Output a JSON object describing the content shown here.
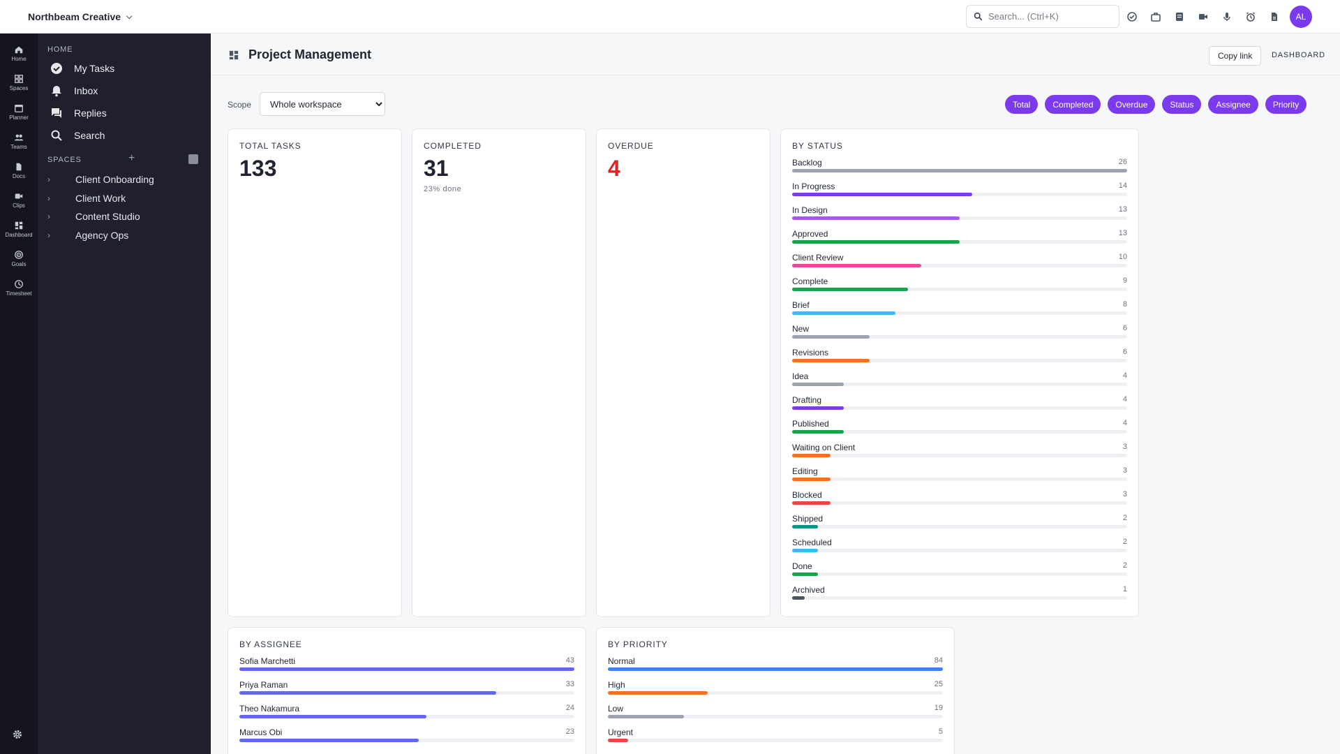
{
  "topbar": {
    "workspace": "Northbeam Creative",
    "search_placeholder": "Search... (Ctrl+K)",
    "icons": [
      "check-circle-icon",
      "briefcase-icon",
      "notepad-icon",
      "video-icon",
      "mic-icon",
      "alarm-icon",
      "document-icon"
    ],
    "avatar": "AL"
  },
  "rail": [
    "Home",
    "Spaces",
    "Planner",
    "Teams",
    "Docs",
    "Clips",
    "Dashboard",
    "Goals",
    "Timesheet"
  ],
  "sidebar": {
    "home_heading": "HOME",
    "nav": [
      "My Tasks",
      "Inbox",
      "Replies",
      "Search"
    ],
    "spaces_heading": "SPACES",
    "spaces": [
      "Client Onboarding",
      "Client Work",
      "Content Studio",
      "Agency Ops"
    ]
  },
  "page": {
    "title": "Project Management",
    "copy_link": "Copy link",
    "dashboard_label": "DASHBOARD",
    "scope_label": "Scope",
    "scope_value": "Whole workspace",
    "pills": [
      "Total",
      "Completed",
      "Overdue",
      "Status",
      "Assignee",
      "Priority"
    ]
  },
  "cards": {
    "total": {
      "title": "TOTAL TASKS",
      "value": "133"
    },
    "completed": {
      "title": "COMPLETED",
      "value": "31",
      "sub": "23% done"
    },
    "overdue": {
      "title": "OVERDUE",
      "value": "4"
    }
  },
  "by_status": {
    "title": "BY STATUS",
    "max": 26,
    "items": [
      {
        "label": "Backlog",
        "value": 26,
        "color": "#9ca3af"
      },
      {
        "label": "In Progress",
        "value": 14,
        "color": "#7c3aed"
      },
      {
        "label": "In Design",
        "value": 13,
        "color": "#a855f7"
      },
      {
        "label": "Approved",
        "value": 13,
        "color": "#16a34a"
      },
      {
        "label": "Client Review",
        "value": 10,
        "color": "#ec4899"
      },
      {
        "label": "Complete",
        "value": 9,
        "color": "#16a34a"
      },
      {
        "label": "Brief",
        "value": 8,
        "color": "#38bdf8"
      },
      {
        "label": "New",
        "value": 6,
        "color": "#9ca3af"
      },
      {
        "label": "Revisions",
        "value": 6,
        "color": "#f97316"
      },
      {
        "label": "Idea",
        "value": 4,
        "color": "#9ca3af"
      },
      {
        "label": "Drafting",
        "value": 4,
        "color": "#7c3aed"
      },
      {
        "label": "Published",
        "value": 4,
        "color": "#16a34a"
      },
      {
        "label": "Waiting on Client",
        "value": 3,
        "color": "#f97316"
      },
      {
        "label": "Editing",
        "value": 3,
        "color": "#f97316"
      },
      {
        "label": "Blocked",
        "value": 3,
        "color": "#ef4444"
      },
      {
        "label": "Shipped",
        "value": 2,
        "color": "#0d9488"
      },
      {
        "label": "Scheduled",
        "value": 2,
        "color": "#38bdf8"
      },
      {
        "label": "Done",
        "value": 2,
        "color": "#16a34a"
      },
      {
        "label": "Archived",
        "value": 1,
        "color": "#4b5563"
      }
    ]
  },
  "by_assignee": {
    "title": "BY ASSIGNEE",
    "max": 43,
    "items": [
      {
        "label": "Sofia Marchetti",
        "value": 43,
        "color": "#6366f1"
      },
      {
        "label": "Priya Raman",
        "value": 33,
        "color": "#6366f1"
      },
      {
        "label": "Theo Nakamura",
        "value": 24,
        "color": "#6366f1"
      },
      {
        "label": "Marcus Obi",
        "value": 23,
        "color": "#6366f1"
      }
    ]
  },
  "by_priority": {
    "title": "BY PRIORITY",
    "max": 84,
    "items": [
      {
        "label": "Normal",
        "value": 84,
        "color": "#3b82f6"
      },
      {
        "label": "High",
        "value": 25,
        "color": "#f97316"
      },
      {
        "label": "Low",
        "value": 19,
        "color": "#9ca3af"
      },
      {
        "label": "Urgent",
        "value": 5,
        "color": "#ef4444"
      }
    ]
  }
}
